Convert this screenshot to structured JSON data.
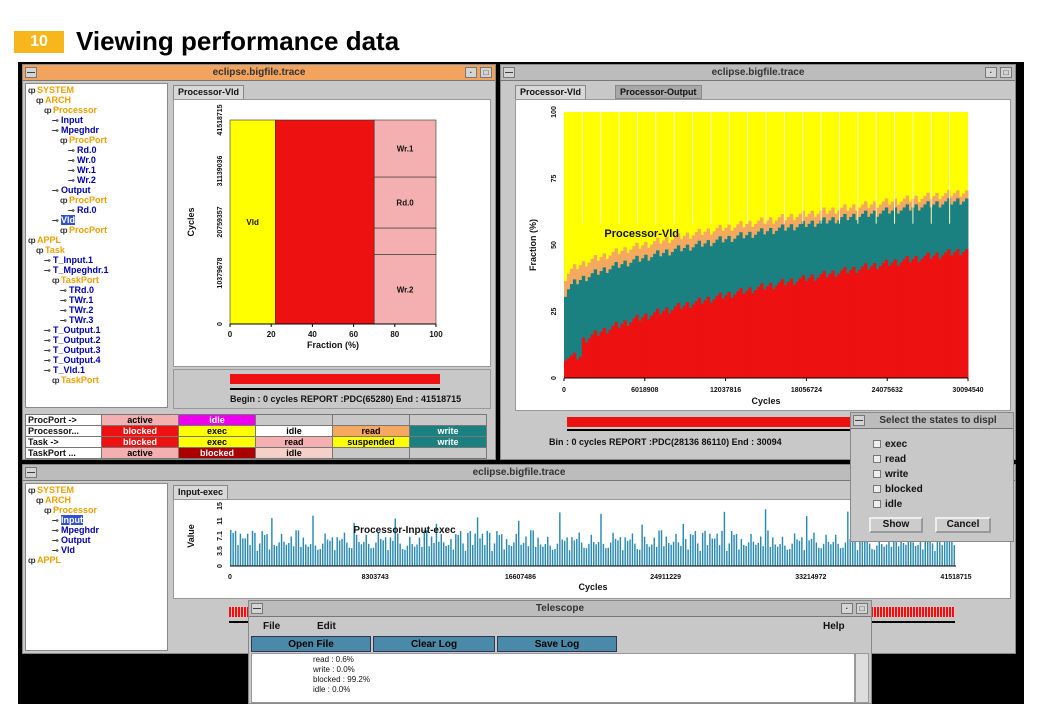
{
  "slide": {
    "number": "10",
    "title": "Viewing performance data"
  },
  "win1": {
    "title": "eclipse.bigfile.trace",
    "tab": "Processor-Vld",
    "tree": [
      [
        "SYSTEM",
        "org"
      ],
      [
        "ARCH",
        "org"
      ],
      [
        "Processor",
        "org"
      ],
      [
        "Input",
        "blu"
      ],
      [
        "Mpeghdr",
        "blu"
      ],
      [
        "ProcPort",
        "org"
      ],
      [
        "Rd.0",
        "blu"
      ],
      [
        "Wr.0",
        "blu"
      ],
      [
        "Wr.1",
        "blu"
      ],
      [
        "Wr.2",
        "blu"
      ],
      [
        "Output",
        "blu"
      ],
      [
        "ProcPort",
        "org"
      ],
      [
        "Rd.0",
        "blu"
      ],
      [
        "Vld",
        "blu"
      ],
      [
        "ProcPort",
        "org"
      ],
      [
        "APPL",
        "org"
      ],
      [
        "Task",
        "org"
      ],
      [
        "T_Input.1",
        "blu"
      ],
      [
        "T_Mpeghdr.1",
        "blu"
      ],
      [
        "TaskPort",
        "org"
      ],
      [
        "TRd.0",
        "blu"
      ],
      [
        "TWr.1",
        "blu"
      ],
      [
        "TWr.2",
        "blu"
      ],
      [
        "TWr.3",
        "blu"
      ],
      [
        "T_Output.1",
        "blu"
      ],
      [
        "T_Output.2",
        "blu"
      ],
      [
        "T_Output.3",
        "blu"
      ],
      [
        "T_Output.4",
        "blu"
      ],
      [
        "T_Vld.1",
        "blu"
      ],
      [
        "TaskPort",
        "org"
      ]
    ],
    "status": "Begin : 0 cycles  REPORT :PDC(65280) End : 41518715",
    "legend": [
      {
        "label": "ProcPort ->",
        "cells": [
          [
            "active",
            "#f4b0b0",
            "#000"
          ],
          [
            "idle",
            "#ee00ee",
            "#fff"
          ]
        ]
      },
      {
        "label": "Processor...",
        "cells": [
          [
            "blocked",
            "#ee1111",
            "#fff"
          ],
          [
            "exec",
            "#ffff00",
            "#000"
          ],
          [
            "idle",
            "#ffffff",
            "#000"
          ],
          [
            "read",
            "#f4a860",
            "#000"
          ],
          [
            "write",
            "#1a8080",
            "#fff"
          ]
        ]
      },
      {
        "label": "Task ->",
        "cells": [
          [
            "blocked",
            "#ee1111",
            "#fff"
          ],
          [
            "exec",
            "#ffff00",
            "#000"
          ],
          [
            "read",
            "#f4b0b0",
            "#000"
          ],
          [
            "suspended",
            "#ffff00",
            "#000"
          ],
          [
            "write",
            "#1a8080",
            "#fff"
          ]
        ]
      },
      {
        "label": "TaskPort ...",
        "cells": [
          [
            "active",
            "#f4b0b0",
            "#000"
          ],
          [
            "blocked",
            "#aa0000",
            "#fff"
          ],
          [
            "idle",
            "#f4d0c8",
            "#000"
          ]
        ]
      }
    ]
  },
  "win2": {
    "title": "eclipse.bigfile.trace",
    "tabs": [
      "Processor-Vld",
      "Processor-Output"
    ],
    "status": "Bin : 0 cycles  REPORT :PDC(28136 86110) End : 30094"
  },
  "win3": {
    "title": "eclipse.bigfile.trace",
    "tab": "Input-exec",
    "tree": [
      [
        "SYSTEM",
        "org"
      ],
      [
        "ARCH",
        "org"
      ],
      [
        "Processor",
        "org"
      ],
      [
        "Input",
        "blu"
      ],
      [
        "Mpeghdr",
        "blu"
      ],
      [
        "Output",
        "blu"
      ],
      [
        "Vld",
        "blu"
      ],
      [
        "APPL",
        "org"
      ]
    ]
  },
  "dialog": {
    "title": "Select the states to displ",
    "options": [
      "exec",
      "read",
      "write",
      "blocked",
      "idle"
    ],
    "show": "Show",
    "cancel": "Cancel"
  },
  "telescope": {
    "title": "Telescope",
    "menu": [
      "File",
      "Edit",
      "Help"
    ],
    "buttons": [
      "Open File",
      "Clear Log",
      "Save Log"
    ],
    "log": [
      "read : 0.6%",
      "write : 0.0%",
      "blocked : 99.2%",
      "idle : 0.0%"
    ]
  },
  "chart_data": [
    {
      "type": "bar",
      "title": "",
      "xlabel": "Fraction (%)",
      "ylabel": "Cycles",
      "xlim": [
        0,
        100
      ],
      "xticks": [
        "0",
        "20",
        "40",
        "60",
        "80",
        "100"
      ],
      "yticks": [
        "0",
        "10379678",
        "20759357",
        "31139036",
        "41518715"
      ],
      "bars": [
        {
          "label": "Vld",
          "from": 0,
          "to": 22,
          "color": "#ffff00"
        },
        {
          "label": "",
          "from": 22,
          "to": 70,
          "color": "#ee1111"
        },
        {
          "label": "Wr.1",
          "from": 70,
          "to": 100,
          "yfrom": 0.72,
          "yto": 1.0,
          "color": "#f4b0b0"
        },
        {
          "label": "Rd.0",
          "from": 70,
          "to": 100,
          "yfrom": 0.47,
          "yto": 0.72,
          "color": "#f4b0b0"
        },
        {
          "label": "",
          "from": 70,
          "to": 100,
          "yfrom": 0.34,
          "yto": 0.47,
          "color": "#f4b0b0"
        },
        {
          "label": "Wr.2",
          "from": 70,
          "to": 100,
          "yfrom": 0.0,
          "yto": 0.34,
          "color": "#f4b0b0"
        }
      ]
    },
    {
      "type": "area",
      "title": "Processor-Vld",
      "xlabel": "Cycles",
      "ylabel": "Fraction (%)",
      "ylim": [
        0,
        100
      ],
      "xticks": [
        "0",
        "6018908",
        "12037816",
        "18056724",
        "24075632",
        "30094540"
      ],
      "yticks": [
        "0",
        "25",
        "50",
        "75",
        "100"
      ],
      "series": [
        {
          "name": "blocked",
          "color": "#ee1111",
          "start": 8,
          "end": 48
        },
        {
          "name": "write",
          "color": "#1a8080",
          "start": 32,
          "end": 67
        },
        {
          "name": "read",
          "color": "#f4a860",
          "start": 38,
          "end": 70
        },
        {
          "name": "exec",
          "color": "#ffff00",
          "start": 100,
          "end": 100
        }
      ]
    },
    {
      "type": "bar",
      "title": "Processor-Input-exec",
      "xlabel": "Cycles",
      "ylabel": "Value",
      "xticks": [
        "0",
        "8303743",
        "16607486",
        "24911229",
        "33214972",
        "41518715"
      ],
      "yticks": [
        "0",
        "3.5",
        "7.1",
        "11",
        "15"
      ],
      "color": "#2a8ab0"
    }
  ]
}
